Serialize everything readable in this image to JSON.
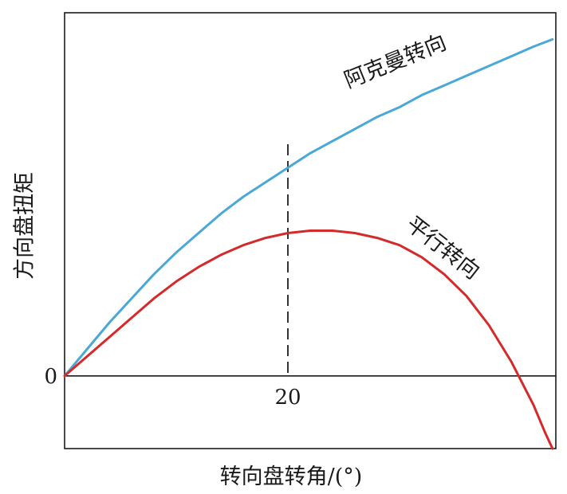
{
  "chart_data": {
    "type": "line",
    "xlabel": "转向盘转角/(°)",
    "ylabel": "方向盘扭矩",
    "x_ticks": [
      20
    ],
    "y_ticks": [
      0
    ],
    "xlim": [
      0,
      44
    ],
    "ylim": [
      -0.3,
      1.5
    ],
    "reference_line": {
      "x": 20,
      "style": "dashed"
    },
    "grid": false,
    "colors": {
      "ackermann": "#4aa8d8",
      "parallel": "#d42a2a",
      "axis": "#1a1a1a"
    },
    "series": [
      {
        "name": "阿克曼转向",
        "label_angle": -22,
        "x": [
          0,
          2,
          4,
          6,
          8,
          10,
          12,
          14,
          16,
          18,
          20,
          22,
          24,
          26,
          28,
          30,
          32,
          34,
          36,
          38,
          40,
          42,
          43.7
        ],
        "y": [
          0,
          0.11,
          0.22,
          0.32,
          0.42,
          0.51,
          0.59,
          0.67,
          0.74,
          0.8,
          0.86,
          0.92,
          0.97,
          1.02,
          1.07,
          1.11,
          1.16,
          1.2,
          1.24,
          1.28,
          1.32,
          1.36,
          1.39
        ]
      },
      {
        "name": "平行转向",
        "label_angle": 38,
        "x": [
          0,
          2,
          4,
          6,
          8,
          10,
          12,
          14,
          16,
          18,
          20,
          22,
          24,
          26,
          28,
          30,
          32,
          34,
          36,
          38,
          40,
          41,
          42,
          43,
          43.7
        ],
        "y": [
          0,
          0.08,
          0.16,
          0.24,
          0.32,
          0.39,
          0.45,
          0.5,
          0.54,
          0.57,
          0.59,
          0.6,
          0.6,
          0.59,
          0.57,
          0.54,
          0.49,
          0.42,
          0.33,
          0.21,
          0.06,
          -0.03,
          -0.12,
          -0.23,
          -0.3
        ]
      }
    ]
  }
}
